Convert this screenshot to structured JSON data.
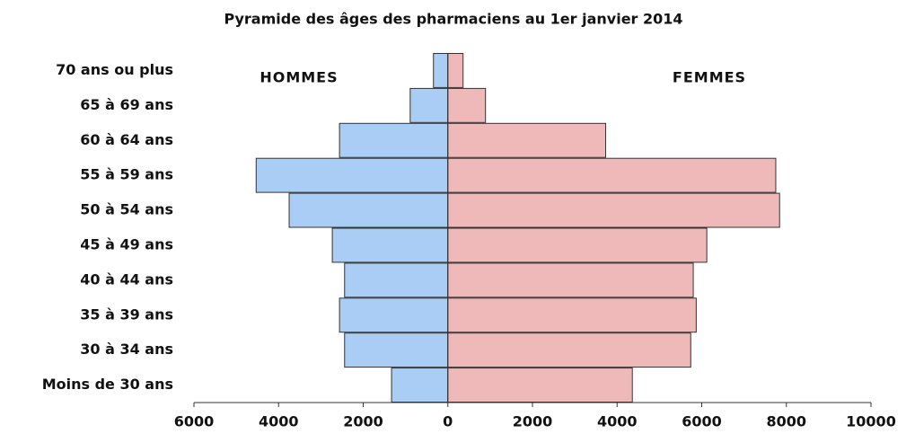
{
  "chart_data": {
    "type": "pyramid",
    "title": "Pyramide des âges des pharmaciens au 1er janvier 2014",
    "categories": [
      "70 ans ou plus",
      "65 à 69 ans",
      "60 à 64 ans",
      "55 à 59 ans",
      "50 à 54 ans",
      "45 à 49 ans",
      "40 à 44 ans",
      "35 à 39 ans",
      "30 à 34 ans",
      "Moins de 30 ans"
    ],
    "series": [
      {
        "name": "HOMMES",
        "color": "#a9cdf4",
        "values": [
          -340,
          -890,
          -2560,
          -4530,
          -3750,
          -2730,
          -2440,
          -2560,
          -2440,
          -1330
        ]
      },
      {
        "name": "FEMMES",
        "color": "#f0b9b9",
        "values": [
          360,
          890,
          3730,
          7750,
          7840,
          6120,
          5800,
          5870,
          5740,
          4360
        ]
      }
    ],
    "xlim": [
      -6000,
      10000
    ],
    "xticks": [
      {
        "value": -6000,
        "label": "6000"
      },
      {
        "value": -4000,
        "label": "4000"
      },
      {
        "value": -2000,
        "label": "2000"
      },
      0,
      2000,
      4000,
      6000,
      8000,
      10000
    ]
  }
}
